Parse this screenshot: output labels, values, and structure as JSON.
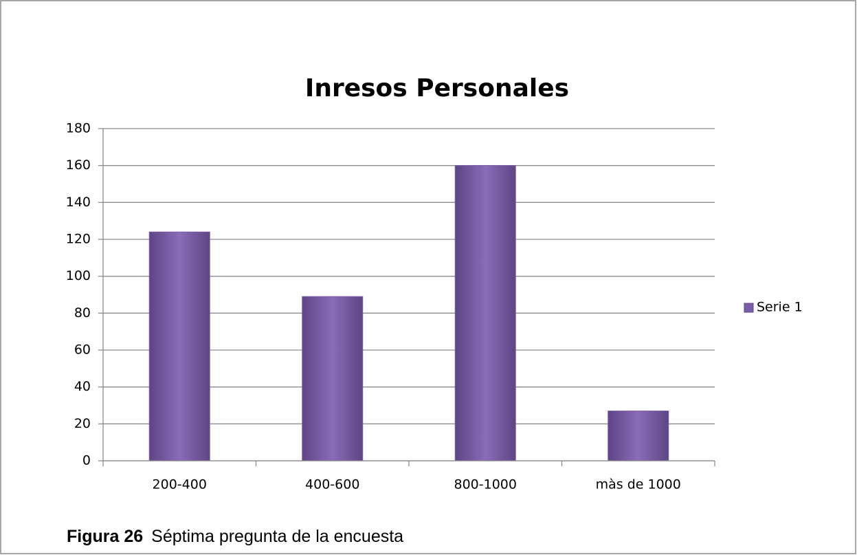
{
  "chart_data": {
    "type": "bar",
    "title": "Inresos Personales",
    "categories": [
      "200-400",
      "400-600",
      "800-1000",
      "màs de 1000"
    ],
    "series": [
      {
        "name": "Serie 1",
        "color": "#7b5ea7",
        "values": [
          124,
          89,
          160,
          27
        ]
      }
    ],
    "ylim": [
      0,
      180
    ],
    "yticks": [
      0,
      20,
      40,
      60,
      80,
      100,
      120,
      140,
      160,
      180
    ],
    "grid": true,
    "legend": "right"
  },
  "caption": {
    "label": "Figura 26",
    "text": "Séptima pregunta de la encuesta"
  }
}
